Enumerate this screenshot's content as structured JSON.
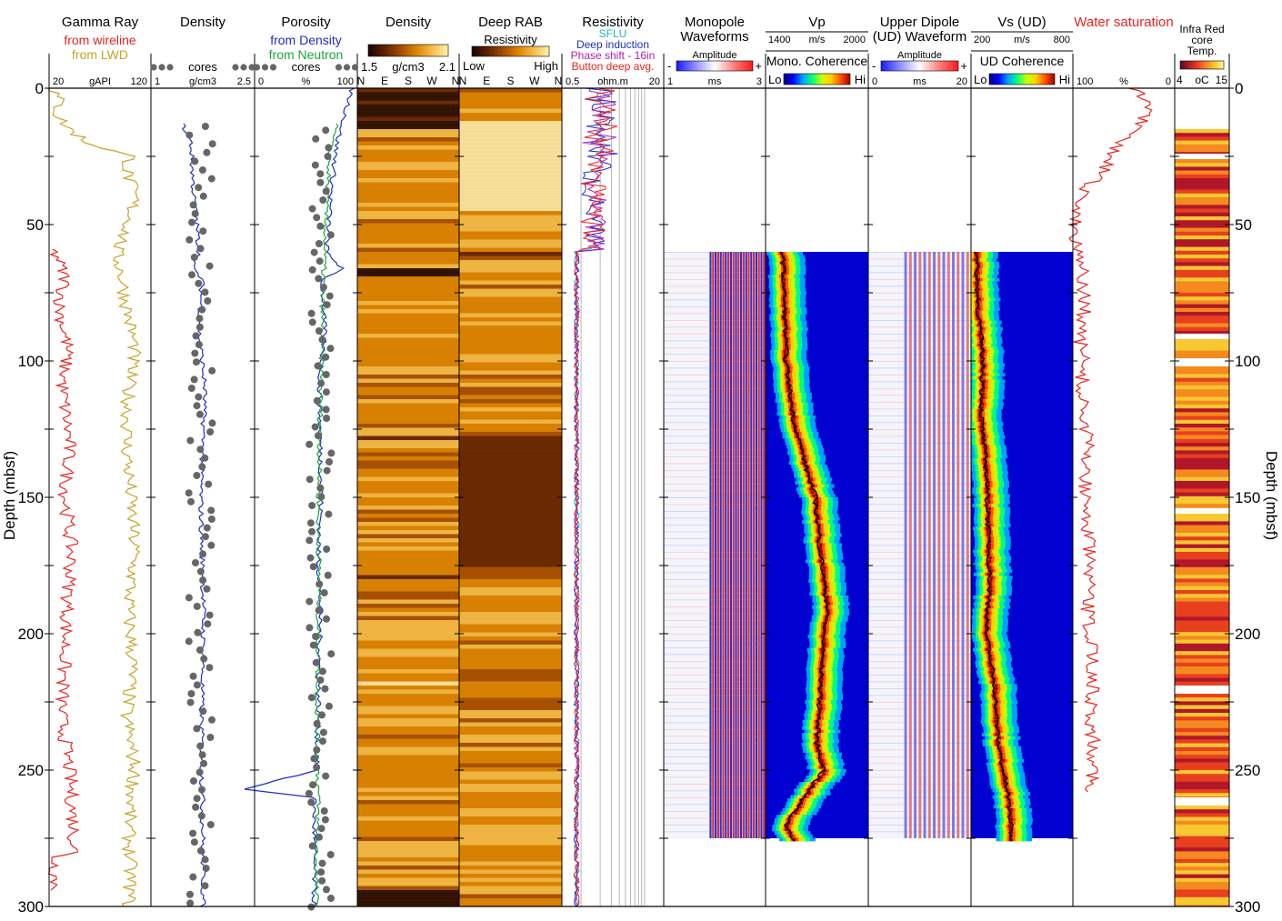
{
  "chart_data": {
    "type": "well-log-composite",
    "depth_axis": {
      "label": "Depth (mbsf)",
      "range": [
        0,
        300
      ],
      "ticks": [
        "0",
        "50",
        "100",
        "150",
        "200",
        "250",
        "300"
      ]
    },
    "tracks": [
      {
        "id": "gamma",
        "title": "Gamma Ray",
        "legend": [
          {
            "text": "from wireline",
            "color": "#e8251f"
          },
          {
            "text": "from LWD",
            "color": "#c9a227"
          }
        ],
        "scale": {
          "min": "20",
          "unit": "gAPI",
          "max": "120"
        }
      },
      {
        "id": "density",
        "title": "Density",
        "legend": [
          {
            "text": "cores",
            "color": "#666666",
            "marker": "dots"
          }
        ],
        "scale": {
          "min": "1",
          "unit": "g/cm3",
          "max": "2.5"
        }
      },
      {
        "id": "porosity",
        "title": "Porosity",
        "legend": [
          {
            "text": "from Density",
            "color": "#1f2fc0"
          },
          {
            "text": "from Neutron",
            "color": "#1ea63a"
          },
          {
            "text": "cores",
            "color": "#666666",
            "marker": "dots"
          }
        ],
        "scale": {
          "min": "0",
          "unit": "%",
          "max": "100"
        }
      },
      {
        "id": "density_image",
        "title": "Density",
        "colorbar": {
          "min": "1.5",
          "unit": "g/cm3",
          "max": "2.1",
          "palette": "afmhot"
        },
        "azimuth": [
          "N",
          "E",
          "S",
          "W",
          "N"
        ]
      },
      {
        "id": "rab",
        "title": "Deep RAB",
        "subtitle": "Resistivity",
        "colorbar": {
          "min": "Low",
          "max": "High",
          "palette": "afmhot"
        },
        "azimuth": [
          "N",
          "E",
          "S",
          "W",
          "N"
        ]
      },
      {
        "id": "resistivity",
        "title": "Resistivity",
        "legend": [
          {
            "text": "SFLU",
            "color": "#26b3b3"
          },
          {
            "text": "Deep induction",
            "color": "#1f2fc0"
          },
          {
            "text": "Phase shift - 16in",
            "color": "#b020b0"
          },
          {
            "text": "Button deep avg.",
            "color": "#e8251f"
          }
        ],
        "scale": {
          "min": "0.5",
          "unit": "ohm.m",
          "max": "20"
        }
      },
      {
        "id": "monopole",
        "title": "Monopole",
        "title2": "Waveforms",
        "colorbar": {
          "label": "Amplitude",
          "minus": "-",
          "plus": "+",
          "palette": "redblue"
        },
        "scale": {
          "min": "1",
          "unit": "ms",
          "max": "3"
        }
      },
      {
        "id": "vp",
        "title": "Vp",
        "scale_top": {
          "min": "1400",
          "unit": "m/s",
          "max": "2000"
        },
        "sublabel": "Mono. Coherence",
        "colorbar": {
          "lo": "Lo",
          "hi": "Hi",
          "palette": "jet"
        }
      },
      {
        "id": "dipole",
        "title": "Upper Dipole",
        "title2": "(UD) Waveform",
        "colorbar": {
          "label": "Amplitude",
          "minus": "-",
          "plus": "+",
          "palette": "redblue"
        },
        "scale": {
          "min": "0",
          "unit": "ms",
          "max": "20"
        }
      },
      {
        "id": "vs",
        "title": "Vs (UD)",
        "scale_top": {
          "min": "200",
          "unit": "m/s",
          "max": "800"
        },
        "sublabel": "UD Coherence",
        "colorbar": {
          "lo": "Lo",
          "hi": "Hi",
          "palette": "jet"
        }
      },
      {
        "id": "sw",
        "title": "Water saturation",
        "title_color": "#e8251f",
        "scale": {
          "min": "100",
          "unit": "%",
          "max": "0"
        }
      },
      {
        "id": "ir",
        "title": "Infra Red",
        "title2": "core",
        "title3": "Temp.",
        "colorbar": {
          "min": "4",
          "unit": "oC",
          "max": "15",
          "palette": "hot"
        }
      }
    ],
    "series": [
      {
        "name": "from wireline",
        "track": "gamma",
        "color": "#e8251f",
        "depth": [
          59,
          62,
          70,
          80,
          95,
          110,
          130,
          150,
          170,
          190,
          210,
          230,
          250,
          270,
          280,
          282,
          290,
          294
        ],
        "values": [
          22,
          28,
          36,
          30,
          38,
          33,
          40,
          36,
          42,
          38,
          35,
          32,
          40,
          44,
          45,
          26,
          26,
          26
        ]
      },
      {
        "name": "from LWD",
        "track": "gamma",
        "color": "#c9a227",
        "depth": [
          0,
          5,
          10,
          15,
          20,
          25,
          30,
          40,
          50,
          60,
          70,
          80,
          95,
          110,
          130,
          150,
          170,
          190,
          210,
          230,
          250,
          270,
          290,
          300
        ],
        "values": [
          24,
          30,
          28,
          40,
          58,
          100,
          96,
          104,
          98,
          86,
          92,
          96,
          104,
          98,
          96,
          100,
          104,
          98,
          102,
          96,
          104,
          98,
          100,
          98
        ]
      },
      {
        "name": "Density (wireline)",
        "track": "density",
        "color": "#1f2fc0",
        "depth": [
          13,
          20,
          40,
          60,
          66,
          70,
          90,
          110,
          130,
          150,
          170,
          190,
          210,
          230,
          250,
          270,
          290,
          300
        ],
        "values": [
          1.45,
          1.58,
          1.62,
          1.7,
          1.6,
          1.74,
          1.7,
          1.78,
          1.75,
          1.72,
          1.74,
          1.76,
          1.75,
          1.73,
          1.74,
          1.75,
          1.76,
          1.75
        ]
      },
      {
        "name": "from Density",
        "track": "porosity",
        "color": "#1f2fc0",
        "depth": [
          0,
          10,
          20,
          40,
          60,
          66,
          70,
          90,
          110,
          130,
          150,
          170,
          190,
          210,
          230,
          250,
          257,
          260,
          280,
          300
        ],
        "values": [
          95,
          88,
          80,
          74,
          70,
          85,
          66,
          68,
          63,
          64,
          65,
          62,
          64,
          63,
          62,
          60,
          -10,
          58,
          58,
          58
        ]
      },
      {
        "name": "from Neutron",
        "track": "porosity",
        "color": "#1ea63a",
        "depth": [
          13,
          20,
          40,
          60,
          80,
          100,
          120,
          140,
          160,
          180,
          200,
          220,
          240,
          260,
          280,
          300
        ],
        "values": [
          80,
          74,
          70,
          68,
          66,
          65,
          64,
          63,
          62,
          63,
          62,
          61,
          61,
          62,
          60,
          60
        ]
      },
      {
        "name": "Vp (picked)",
        "track": "vp",
        "color": "#000000",
        "depth": [
          60,
          80,
          100,
          120,
          140,
          150,
          170,
          190,
          200,
          220,
          240,
          250,
          260,
          270,
          276
        ],
        "values": [
          1500,
          1510,
          1520,
          1560,
          1640,
          1690,
          1720,
          1760,
          1740,
          1720,
          1700,
          1740,
          1620,
          1520,
          1570
        ]
      },
      {
        "name": "Vs (picked)",
        "track": "vs",
        "color": "#000000",
        "depth": [
          60,
          80,
          100,
          120,
          140,
          160,
          180,
          200,
          220,
          240,
          260,
          276
        ],
        "values": [
          230,
          240,
          270,
          260,
          290,
          300,
          310,
          290,
          340,
          360,
          420,
          440
        ]
      },
      {
        "name": "Water saturation",
        "track": "sw",
        "color": "#e8251f",
        "depth": [
          0,
          5,
          10,
          20,
          30,
          40,
          50,
          55,
          62,
          70,
          80,
          90,
          100,
          110,
          130,
          150,
          170,
          190,
          210,
          230,
          250,
          258
        ],
        "values": [
          40,
          30,
          28,
          55,
          70,
          95,
          96,
          98,
          90,
          92,
          88,
          94,
          90,
          92,
          86,
          88,
          84,
          86,
          80,
          82,
          78,
          86
        ]
      }
    ],
    "core_sections": [
      {
        "track": "ir",
        "from": 15,
        "to": 24
      },
      {
        "track": "ir",
        "from": 26,
        "to": 90
      },
      {
        "track": "ir",
        "from": 92,
        "to": 99
      },
      {
        "track": "ir",
        "from": 102,
        "to": 154
      },
      {
        "track": "ir",
        "from": 156,
        "to": 219
      },
      {
        "track": "ir",
        "from": 222,
        "to": 260
      },
      {
        "track": "ir",
        "from": 263,
        "to": 300
      }
    ],
    "image_sections": [
      {
        "track": "monopole",
        "from": 60,
        "to": 275
      },
      {
        "track": "vp",
        "from": 60,
        "to": 275
      },
      {
        "track": "dipole",
        "from": 60,
        "to": 275
      },
      {
        "track": "vs",
        "from": 60,
        "to": 275
      }
    ]
  }
}
